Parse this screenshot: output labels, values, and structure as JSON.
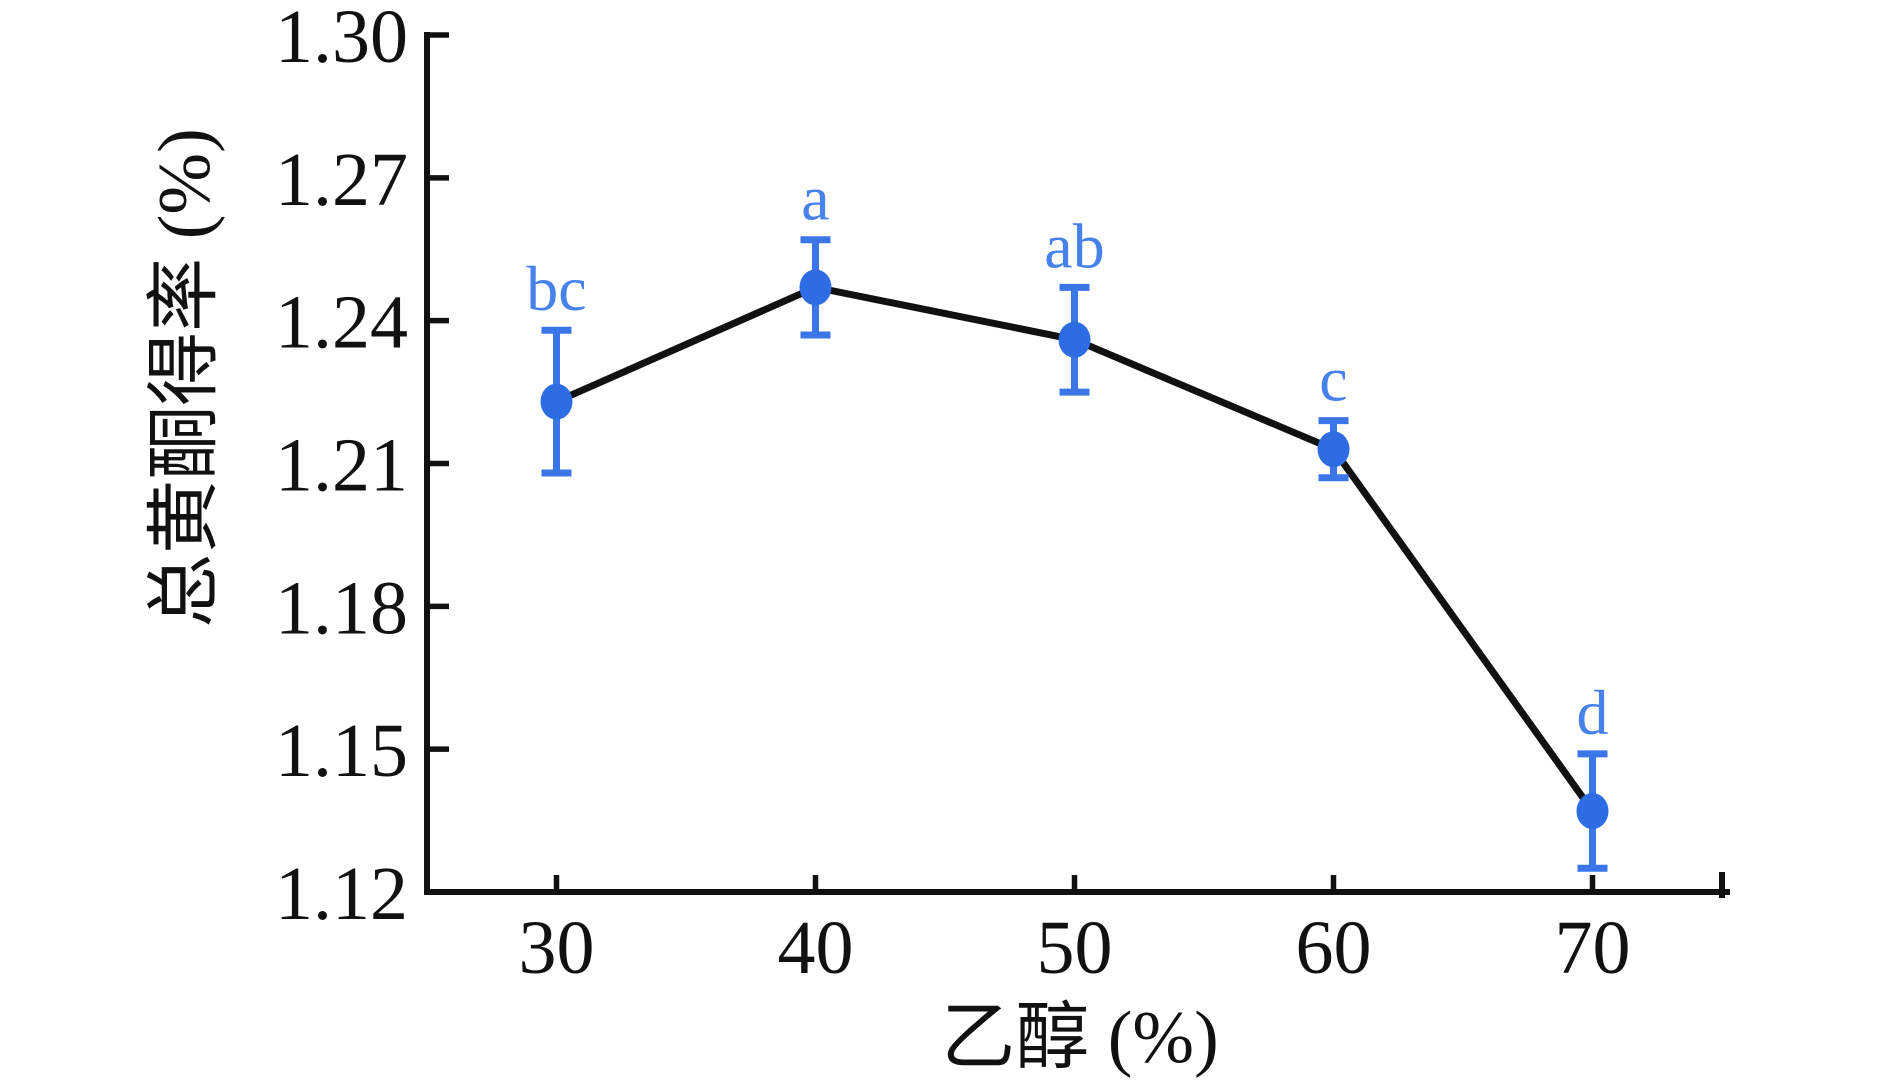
{
  "figure": {
    "background": "#ffffff"
  },
  "chart_data": {
    "type": "line",
    "title": "",
    "xlabel": "乙醇 (%)",
    "ylabel": "总黄酮得率 (%)",
    "x": [
      30,
      40,
      50,
      60,
      70
    ],
    "series": [
      {
        "name": "总黄酮得率",
        "values": [
          1.223,
          1.247,
          1.236,
          1.213,
          1.137
        ],
        "errors": [
          0.015,
          0.01,
          0.011,
          0.006,
          0.012
        ],
        "point_labels": [
          "bc",
          "a",
          "ab",
          "c",
          "d"
        ]
      }
    ],
    "xticks": [
      30,
      40,
      50,
      60,
      70
    ],
    "yticks": [
      1.12,
      1.15,
      1.18,
      1.21,
      1.24,
      1.27,
      1.3
    ],
    "xlim": [
      25,
      75
    ],
    "ylim": [
      1.12,
      1.3
    ],
    "grid": false,
    "legend": false,
    "colors": {
      "marker": "#2d6ce2",
      "error_bar": "#3b76e8",
      "point_label": "#4782ec",
      "line": "#111111",
      "axis": "#111111",
      "text": "#111111"
    }
  }
}
